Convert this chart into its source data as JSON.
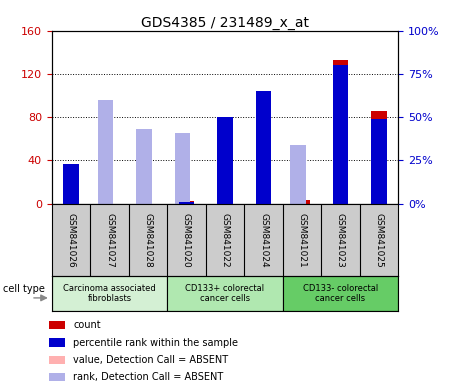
{
  "title": "GDS4385 / 231489_x_at",
  "samples": [
    "GSM841026",
    "GSM841027",
    "GSM841028",
    "GSM841020",
    "GSM841022",
    "GSM841024",
    "GSM841021",
    "GSM841023",
    "GSM841025"
  ],
  "groups": [
    {
      "label": "Carcinoma associated\nfibroblasts",
      "start": 0,
      "end": 3,
      "color": "#d4f0d4"
    },
    {
      "label": "CD133+ colorectal\ncancer cells",
      "start": 3,
      "end": 6,
      "color": "#b0e8b0"
    },
    {
      "label": "CD133- colorectal\ncancer cells",
      "start": 6,
      "end": 9,
      "color": "#66cc66"
    }
  ],
  "count_values": [
    32,
    0,
    0,
    2,
    67,
    97,
    3,
    133,
    86
  ],
  "rank_values": [
    23,
    0,
    0,
    1,
    50,
    65,
    0,
    80,
    49
  ],
  "absent_value": [
    0,
    50,
    42,
    38,
    0,
    0,
    22,
    0,
    0
  ],
  "absent_rank": [
    0,
    60,
    43,
    41,
    0,
    0,
    34,
    0,
    0
  ],
  "left_ylim": [
    0,
    160
  ],
  "right_ylim": [
    0,
    100
  ],
  "left_yticks": [
    0,
    40,
    80,
    120,
    160
  ],
  "right_yticks": [
    0,
    25,
    50,
    75,
    100
  ],
  "right_yticklabels": [
    "0%",
    "25%",
    "50%",
    "75%",
    "100%"
  ],
  "count_color": "#cc0000",
  "rank_color": "#0000cc",
  "absent_value_color": "#ffb0b0",
  "absent_rank_color": "#b0b0e8",
  "bg_color": "#ffffff",
  "tick_label_area_color": "#cccccc",
  "legend_items": [
    "count",
    "percentile rank within the sample",
    "value, Detection Call = ABSENT",
    "rank, Detection Call = ABSENT"
  ],
  "bar_width": 0.4
}
